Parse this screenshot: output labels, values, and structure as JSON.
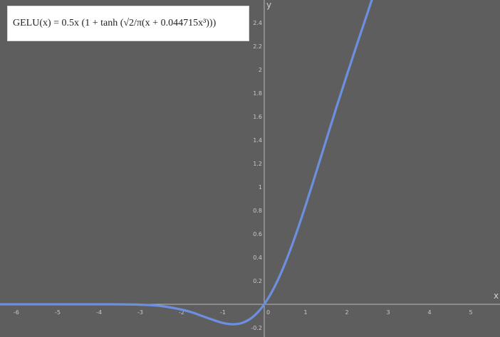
{
  "formula": {
    "text": "GELU(x) = 0.5x (1 + tanh (√2/π(x + 0.044715x³)))"
  },
  "colors": {
    "background": "#5e5e5e",
    "axis": "#b8b8b8",
    "curve": "#6d8fe0",
    "tick_text": "#c9c9c9",
    "formula_box": "#ffffff"
  },
  "chart_data": {
    "type": "line",
    "title": "",
    "xlabel": "x",
    "ylabel": "y",
    "xlim": [
      -6.5,
      5.7
    ],
    "ylim": [
      -0.25,
      2.55
    ],
    "x_ticks": [
      -6,
      -5,
      -4,
      -3,
      -2,
      -1,
      0,
      1,
      2,
      3,
      4,
      5
    ],
    "x_tick_labels": [
      "-6",
      "-5",
      "-4",
      "-3",
      "-2",
      "-1",
      "0",
      "1",
      "2",
      "3",
      "4",
      "5"
    ],
    "y_ticks": [
      -0.2,
      0.2,
      0.4,
      0.6,
      0.8,
      1,
      1.2,
      1.4,
      1.6,
      1.8,
      2,
      2.2,
      2.4
    ],
    "y_tick_labels": [
      "-0.2",
      "0.2",
      "0.4",
      "0.6",
      "0.8",
      "1",
      "1.2",
      "1.4",
      "1.6",
      "1.8",
      "2",
      "2.2",
      "2.4"
    ],
    "grid": false,
    "series": [
      {
        "function": "GELU(x) = 0.5x(1 + tanh(sqrt(2/pi)(x + 0.044715x^3)))",
        "x": [
          -6.5,
          -6,
          -5,
          -4,
          -3.5,
          -3,
          -2.5,
          -2,
          -1.75,
          -1.5,
          -1.25,
          -1,
          -0.75,
          -0.5,
          -0.25,
          0,
          0.25,
          0.5,
          0.75,
          1,
          1.25,
          1.5,
          1.75,
          2,
          2.25,
          2.5,
          2.75
        ],
        "y": [
          0,
          0,
          0,
          -0.0001,
          -0.0007,
          -0.0036,
          -0.0145,
          -0.0454,
          -0.0683,
          -0.1002,
          -0.1316,
          -0.1588,
          -0.1701,
          -0.1543,
          -0.1003,
          0,
          0.1497,
          0.3457,
          0.5799,
          0.8412,
          1.1184,
          1.3998,
          1.6817,
          1.9546,
          2.2219,
          2.4845,
          2.7465
        ]
      }
    ]
  }
}
